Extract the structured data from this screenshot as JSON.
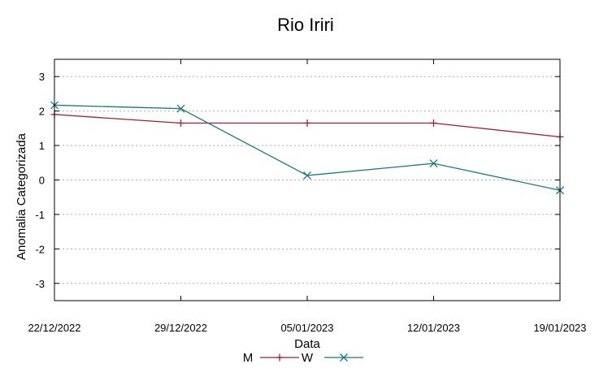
{
  "chart_data": {
    "type": "line",
    "title": "Rio Iriri",
    "xlabel": "Data",
    "ylabel": "Anomalia Categorizada",
    "categories": [
      "22/12/2022",
      "29/12/2022",
      "05/01/2023",
      "12/01/2023",
      "19/01/2023"
    ],
    "ylim": [
      -3.5,
      3.5
    ],
    "yticks": [
      "3",
      "2",
      "1",
      "0",
      "-1",
      "-2",
      "-3"
    ],
    "grid": true,
    "legend_position": "bottom-center",
    "series": [
      {
        "name": "M",
        "values": [
          1.9,
          1.65,
          1.65,
          1.65,
          1.25
        ],
        "color": "#a0203a",
        "marker": "plus"
      },
      {
        "name": "W",
        "values": [
          2.17,
          2.07,
          0.13,
          0.48,
          -0.3
        ],
        "color": "#1b7a7e",
        "marker": "cross"
      }
    ]
  }
}
